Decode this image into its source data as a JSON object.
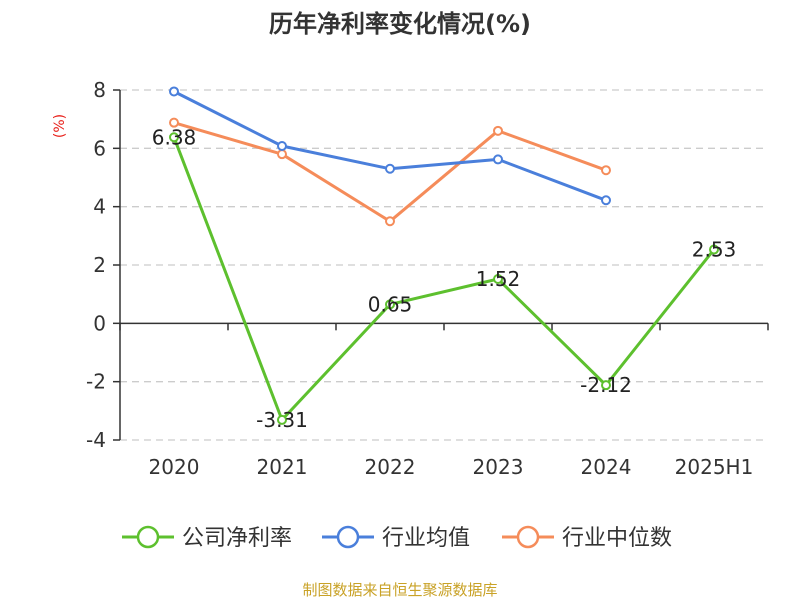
{
  "chart_data": {
    "type": "line",
    "title": "历年净利率变化情况(%)",
    "ylabel": "(%)",
    "xlabel": "",
    "categories": [
      "2020",
      "2021",
      "2022",
      "2023",
      "2024",
      "2025H1"
    ],
    "ylim": [
      -4,
      8
    ],
    "yticks": [
      -4,
      -2,
      0,
      2,
      4,
      6,
      8
    ],
    "grid": true,
    "legend_position": "bottom",
    "series": [
      {
        "name": "公司净利率",
        "color": "#5dc02e",
        "values": [
          6.38,
          -3.31,
          0.65,
          1.52,
          -2.12,
          2.53
        ],
        "labels": [
          "6.38",
          "-3.31",
          "0.65",
          "1.52",
          "-2.12",
          "2.53"
        ]
      },
      {
        "name": "行业均值",
        "color": "#4a7fdb",
        "values": [
          7.95,
          6.08,
          5.3,
          5.62,
          4.22,
          null
        ]
      },
      {
        "name": "行业中位数",
        "color": "#f58c5a",
        "values": [
          6.88,
          5.8,
          3.5,
          6.6,
          5.25,
          null
        ]
      }
    ]
  },
  "footer": {
    "source": "制图数据来自恒生聚源数据库"
  },
  "colors": {
    "title": "#333333",
    "ylabel": "#e8211b",
    "source": "#c9a227",
    "axis": "#333333",
    "grid": "#cccccc"
  }
}
